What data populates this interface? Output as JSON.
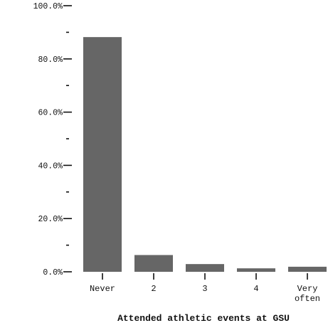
{
  "chart_data": {
    "type": "bar",
    "xlabel": "Attended athletic events at GSU",
    "ylabel": "",
    "categories": [
      [
        "Never"
      ],
      [
        "2"
      ],
      [
        "3"
      ],
      [
        "4"
      ],
      [
        "Very",
        "often"
      ]
    ],
    "values": [
      88.2,
      6.3,
      2.9,
      1.3,
      1.9
    ],
    "value_unit": "percent",
    "ylim": [
      0,
      100
    ],
    "y_major_ticks": [
      "0.0%",
      "20.0%",
      "40.0%",
      "60.0%",
      "80.0%",
      "100.0%"
    ],
    "y_major_tick_values": [
      0,
      20,
      40,
      60,
      80,
      100
    ],
    "y_minor_tick_values": [
      10,
      30,
      50,
      70,
      90
    ],
    "bar_color": "#666666",
    "axis_color": "#111111",
    "grid": false,
    "legend": "none"
  }
}
